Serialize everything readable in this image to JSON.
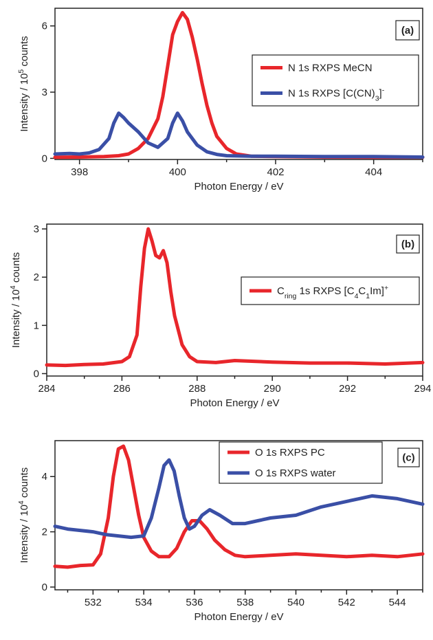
{
  "chart_data": [
    {
      "type": "line",
      "panel": "(a)",
      "xlabel": "Photon Energy / eV",
      "ylabel": "Intensity / 10^5 counts",
      "ylabel_parts": {
        "pre": "Intensity / 10",
        "sup": "5",
        "post": " counts"
      },
      "xlim": [
        397.5,
        405.0
      ],
      "ylim": [
        -0.05,
        6.8
      ],
      "xticks": [
        398,
        400,
        402,
        404
      ],
      "yticks": [
        0,
        3,
        6
      ],
      "legend_position": "right",
      "series": [
        {
          "name": "N 1s RXPS MeCN",
          "name_parts": [
            {
              "t": "N 1s RXPS MeCN"
            }
          ],
          "color": "#e8262b",
          "x": [
            397.5,
            398.0,
            398.5,
            398.8,
            399.0,
            399.2,
            399.4,
            399.6,
            399.7,
            399.8,
            399.9,
            400.0,
            400.1,
            400.2,
            400.3,
            400.4,
            400.5,
            400.6,
            400.7,
            400.8,
            401.0,
            401.2,
            401.5,
            402.0,
            403.0,
            404.0,
            405.0
          ],
          "y": [
            0.05,
            0.06,
            0.08,
            0.12,
            0.2,
            0.45,
            0.9,
            1.8,
            2.8,
            4.2,
            5.6,
            6.2,
            6.6,
            6.3,
            5.5,
            4.5,
            3.4,
            2.4,
            1.6,
            1.0,
            0.45,
            0.2,
            0.1,
            0.08,
            0.06,
            0.05,
            0.05
          ]
        },
        {
          "name": "N 1s RXPS [C(CN)3]-",
          "name_parts": [
            {
              "t": "N 1s RXPS [C(CN)"
            },
            {
              "t": "3",
              "sub": true
            },
            {
              "t": "]"
            },
            {
              "t": "-",
              "sup": true
            }
          ],
          "color": "#3a4fa6",
          "x": [
            397.5,
            397.8,
            398.0,
            398.2,
            398.4,
            398.6,
            398.7,
            398.8,
            398.9,
            399.0,
            399.2,
            399.4,
            399.6,
            399.8,
            399.9,
            400.0,
            400.1,
            400.2,
            400.4,
            400.6,
            400.8,
            401.0,
            401.5,
            402.0,
            403.0,
            404.0,
            405.0
          ],
          "y": [
            0.2,
            0.22,
            0.2,
            0.25,
            0.4,
            0.9,
            1.6,
            2.05,
            1.85,
            1.6,
            1.2,
            0.7,
            0.5,
            0.9,
            1.6,
            2.05,
            1.7,
            1.2,
            0.6,
            0.3,
            0.18,
            0.12,
            0.1,
            0.1,
            0.08,
            0.08,
            0.06
          ]
        }
      ]
    },
    {
      "type": "line",
      "panel": "(b)",
      "xlabel": "Photon Energy / eV",
      "ylabel": "Intensity / 10^4 counts",
      "ylabel_parts": {
        "pre": "Intensity / 10",
        "sup": "4",
        "post": " counts"
      },
      "xlim": [
        284.0,
        294.0
      ],
      "ylim": [
        -0.05,
        3.1
      ],
      "xticks": [
        284,
        286,
        288,
        290,
        292,
        294
      ],
      "yticks": [
        0,
        1,
        2,
        3
      ],
      "legend_position": "right",
      "series": [
        {
          "name": "Cring 1s RXPS [C4C1Im]+",
          "name_parts": [
            {
              "t": "C"
            },
            {
              "t": "ring",
              "sub": true
            },
            {
              "t": " 1s RXPS [C"
            },
            {
              "t": "4",
              "sub": true
            },
            {
              "t": "C"
            },
            {
              "t": "1",
              "sub": true
            },
            {
              "t": "Im]"
            },
            {
              "t": "+",
              "sup": true
            }
          ],
          "color": "#e8262b",
          "x": [
            284.0,
            284.5,
            285.0,
            285.5,
            286.0,
            286.2,
            286.4,
            286.5,
            286.6,
            286.7,
            286.8,
            286.9,
            287.0,
            287.1,
            287.2,
            287.3,
            287.4,
            287.6,
            287.8,
            288.0,
            288.5,
            289.0,
            290.0,
            291.0,
            292.0,
            293.0,
            294.0
          ],
          "y": [
            0.18,
            0.17,
            0.19,
            0.2,
            0.25,
            0.35,
            0.8,
            1.8,
            2.6,
            3.0,
            2.75,
            2.45,
            2.4,
            2.55,
            2.3,
            1.7,
            1.2,
            0.6,
            0.35,
            0.25,
            0.23,
            0.27,
            0.24,
            0.22,
            0.22,
            0.2,
            0.23
          ]
        }
      ]
    },
    {
      "type": "line",
      "panel": "(c)",
      "xlabel": "Photon Energy / eV",
      "ylabel": "Intensity / 10^4 counts",
      "ylabel_parts": {
        "pre": "Intensity / 10",
        "sup": "4",
        "post": " counts"
      },
      "xlim": [
        530.5,
        545.0
      ],
      "ylim": [
        -0.1,
        5.3
      ],
      "xticks": [
        532,
        534,
        536,
        538,
        540,
        542,
        544
      ],
      "yticks": [
        0,
        2,
        4
      ],
      "legend_position": "top-right",
      "series": [
        {
          "name": "O 1s RXPS PC",
          "name_parts": [
            {
              "t": "O 1s RXPS PC"
            }
          ],
          "color": "#e8262b",
          "x": [
            530.5,
            531.0,
            531.5,
            532.0,
            532.3,
            532.6,
            532.8,
            533.0,
            533.2,
            533.4,
            533.6,
            533.8,
            534.0,
            534.3,
            534.6,
            535.0,
            535.3,
            535.6,
            535.9,
            536.2,
            536.5,
            536.8,
            537.2,
            537.6,
            538.0,
            539.0,
            540.0,
            541.0,
            542.0,
            543.0,
            544.0,
            545.0
          ],
          "y": [
            0.75,
            0.72,
            0.78,
            0.8,
            1.2,
            2.5,
            4.0,
            5.0,
            5.1,
            4.6,
            3.6,
            2.6,
            1.8,
            1.3,
            1.1,
            1.1,
            1.4,
            2.0,
            2.4,
            2.4,
            2.1,
            1.7,
            1.35,
            1.15,
            1.1,
            1.15,
            1.2,
            1.15,
            1.1,
            1.15,
            1.1,
            1.2
          ]
        },
        {
          "name": "O 1s RXPS water",
          "name_parts": [
            {
              "t": "O 1s RXPS water"
            }
          ],
          "color": "#3a4fa6",
          "x": [
            530.5,
            531.0,
            531.5,
            532.0,
            532.5,
            533.0,
            533.5,
            534.0,
            534.3,
            534.6,
            534.8,
            535.0,
            535.2,
            535.4,
            535.6,
            535.8,
            536.0,
            536.3,
            536.6,
            537.0,
            537.5,
            538.0,
            538.5,
            539.0,
            540.0,
            541.0,
            541.5,
            542.0,
            542.5,
            543.0,
            543.5,
            544.0,
            544.5,
            545.0
          ],
          "y": [
            2.2,
            2.1,
            2.05,
            2.0,
            1.9,
            1.85,
            1.8,
            1.85,
            2.5,
            3.6,
            4.4,
            4.6,
            4.2,
            3.3,
            2.5,
            2.1,
            2.2,
            2.6,
            2.8,
            2.6,
            2.3,
            2.3,
            2.4,
            2.5,
            2.6,
            2.9,
            3.0,
            3.1,
            3.2,
            3.3,
            3.25,
            3.2,
            3.1,
            3.0
          ]
        }
      ]
    }
  ]
}
